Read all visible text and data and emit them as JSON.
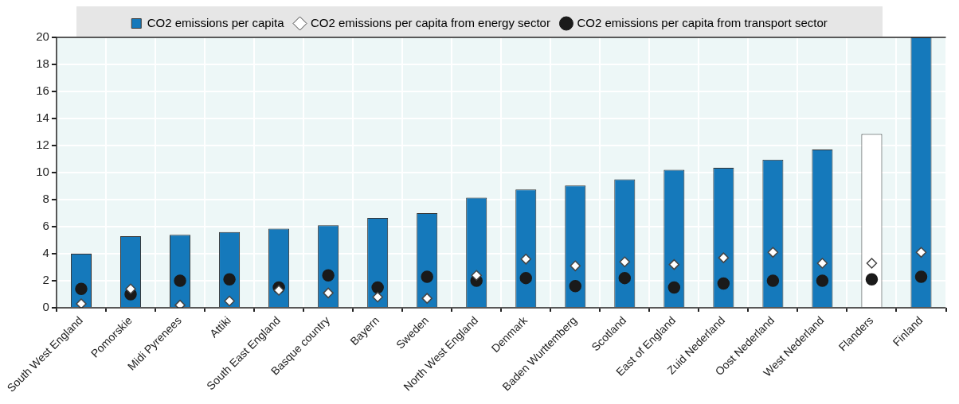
{
  "chart_data": {
    "type": "bar",
    "categories": [
      "South West England",
      "Pomorskie",
      "Midi Pyrenees",
      "Attiki",
      "South East England",
      "Basque country",
      "Bayern",
      "Sweden",
      "North West England",
      "Denmark",
      "Baden Wurttemberg",
      "Scotland",
      "East of England",
      "Zuid Nederland",
      "Oost Nederland",
      "West Nederland",
      "Flanders",
      "Finland"
    ],
    "series": [
      {
        "name": "CO2 emissions per capita",
        "color": "#1579bb",
        "colors": [
          "#1579bb",
          "#1579bb",
          "#1579bb",
          "#1579bb",
          "#1579bb",
          "#1579bb",
          "#1579bb",
          "#1579bb",
          "#1579bb",
          "#1579bb",
          "#1579bb",
          "#1579bb",
          "#1579bb",
          "#1579bb",
          "#1579bb",
          "#1579bb",
          "#ffffff",
          "#1579bb"
        ],
        "values": [
          4.0,
          5.3,
          5.4,
          5.6,
          5.85,
          6.1,
          6.65,
          7.0,
          8.15,
          8.75,
          9.05,
          9.5,
          10.2,
          10.35,
          10.95,
          11.7,
          12.85,
          20
        ]
      },
      {
        "name": "CO2 emissions per capita from energy sector",
        "type": "scatter",
        "marker": "diamond",
        "color": "#ffffff",
        "values": [
          0.3,
          1.4,
          0.2,
          0.5,
          1.3,
          1.1,
          0.8,
          0.7,
          2.4,
          3.6,
          3.1,
          3.4,
          3.2,
          3.7,
          4.1,
          3.3,
          3.3,
          4.1
        ]
      },
      {
        "name": "CO2 emissions per capita from transport sector",
        "type": "scatter",
        "marker": "circle",
        "color": "#1a1a1a",
        "values": [
          1.4,
          1.0,
          2.0,
          2.1,
          1.5,
          2.4,
          1.5,
          2.3,
          2.0,
          2.2,
          1.6,
          2.2,
          1.5,
          1.8,
          2.0,
          2.0,
          2.1,
          2.3
        ]
      }
    ],
    "ylim": [
      0,
      20
    ],
    "yticks": [
      0,
      2,
      4,
      6,
      8,
      10,
      12,
      14,
      16,
      18,
      20
    ],
    "grid": true,
    "legend": "top"
  }
}
